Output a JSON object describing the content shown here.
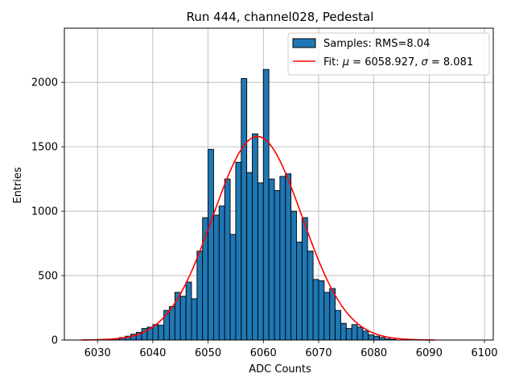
{
  "chart_data": {
    "type": "bar",
    "title": "Run 444, channel028, Pedestal",
    "xlabel": "ADC Counts",
    "ylabel": "Entries",
    "xlim": [
      6024,
      6101.6
    ],
    "ylim": [
      0,
      2420
    ],
    "grid": true,
    "legend_placement": "top-right",
    "bin_width": 1,
    "x_ticks": [
      6030,
      6040,
      6050,
      6060,
      6070,
      6080,
      6090,
      6100
    ],
    "y_ticks": [
      0,
      500,
      1000,
      1500,
      2000
    ],
    "series": [
      {
        "name": "Samples: RMS=8.04",
        "kind": "histogram",
        "color": "#1f77b4",
        "edge_color": "#000000",
        "bin_starts": [
          6033,
          6034,
          6035,
          6036,
          6037,
          6038,
          6039,
          6040,
          6041,
          6042,
          6043,
          6044,
          6045,
          6046,
          6047,
          6048,
          6049,
          6050,
          6051,
          6052,
          6053,
          6054,
          6055,
          6056,
          6057,
          6058,
          6059,
          6060,
          6061,
          6062,
          6063,
          6064,
          6065,
          6066,
          6067,
          6068,
          6069,
          6070,
          6071,
          6072,
          6073,
          6074,
          6075,
          6076,
          6077,
          6078,
          6079,
          6080,
          6081,
          6082,
          6083
        ],
        "values": [
          10,
          20,
          30,
          45,
          60,
          90,
          100,
          120,
          115,
          230,
          260,
          370,
          340,
          450,
          320,
          690,
          950,
          1480,
          970,
          1040,
          1250,
          820,
          1380,
          2030,
          1300,
          1600,
          1220,
          2100,
          1250,
          1160,
          1270,
          1290,
          1000,
          760,
          950,
          690,
          470,
          460,
          370,
          400,
          230,
          130,
          90,
          120,
          100,
          70,
          40,
          30,
          20,
          10,
          5
        ]
      },
      {
        "name": "Fit: μ = 6058.927, σ = 8.081",
        "kind": "line",
        "color": "#ff0000",
        "mu": 6058.927,
        "sigma": 8.081,
        "amplitude": 1580,
        "x_range": [
          6027,
          6091
        ]
      }
    ]
  },
  "legend": {
    "samples_label": "Samples: RMS=8.04",
    "fit_label_prefix": "Fit: ",
    "fit_mu_symbol": "μ",
    "fit_mu_value": " = 6058.927, ",
    "fit_sigma_symbol": "σ",
    "fit_sigma_value": " = 8.081"
  }
}
